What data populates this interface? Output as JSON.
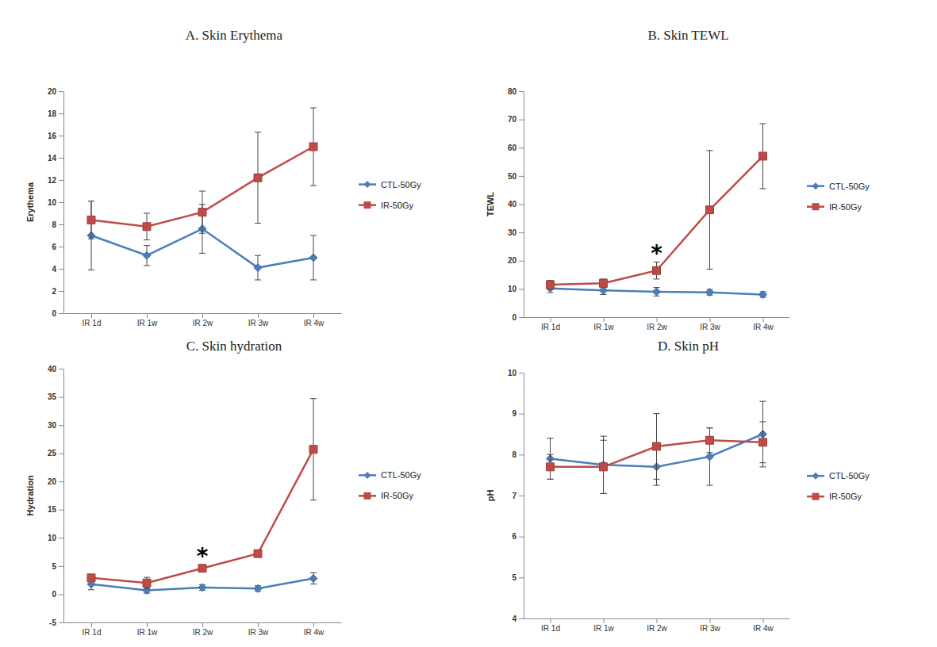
{
  "chart_data": [
    {
      "type": "line",
      "title": "A. Skin Erythema",
      "y_label": "Erythema",
      "categories": [
        "IR 1d",
        "IR 1w",
        "IR 2w",
        "IR 3w",
        "IR 4w"
      ],
      "ylim": [
        0,
        20
      ],
      "yticks": [
        0,
        2,
        4,
        6,
        8,
        10,
        12,
        14,
        16,
        18,
        20
      ],
      "grid": false,
      "legend": "right",
      "series": [
        {
          "name": "CTL-50Gy",
          "color": "#4a7ebb",
          "marker": "diamond",
          "values": [
            7.0,
            5.2,
            7.6,
            4.1,
            5.0
          ],
          "errors": [
            3.1,
            0.9,
            2.2,
            1.1,
            2.0
          ]
        },
        {
          "name": "IR-50Gy",
          "color": "#be4b48",
          "marker": "square",
          "values": [
            8.4,
            7.8,
            9.1,
            12.2,
            15.0
          ],
          "errors": [
            1.7,
            1.2,
            1.9,
            4.1,
            3.5
          ]
        }
      ],
      "annotations": []
    },
    {
      "type": "line",
      "title": "B. Skin TEWL",
      "y_label": "TEWL",
      "categories": [
        "IR 1d",
        "IR 1w",
        "IR 2w",
        "IR 3w",
        "IR 4w"
      ],
      "ylim": [
        0,
        80
      ],
      "yticks": [
        0,
        10,
        20,
        30,
        40,
        50,
        60,
        70,
        80
      ],
      "grid": false,
      "legend": "right",
      "series": [
        {
          "name": "CTL-50Gy",
          "color": "#4a7ebb",
          "marker": "diamond",
          "values": [
            10.2,
            9.5,
            9.0,
            8.8,
            8.0
          ],
          "errors": [
            1.5,
            1.5,
            1.5,
            1.0,
            1.0
          ]
        },
        {
          "name": "IR-50Gy",
          "color": "#be4b48",
          "marker": "square",
          "values": [
            11.5,
            12.0,
            16.5,
            38.0,
            57.0
          ],
          "errors": [
            1.5,
            1.5,
            3.0,
            21.0,
            11.5
          ]
        }
      ],
      "annotations": [
        {
          "text": "*",
          "category": "IR 2w"
        }
      ]
    },
    {
      "type": "line",
      "title": "C. Skin hydration",
      "y_label": "Hydration",
      "categories": [
        "IR 1d",
        "IR 1w",
        "IR 2w",
        "IR 3w",
        "IR 4w"
      ],
      "ylim": [
        -5,
        40
      ],
      "yticks": [
        -5,
        0,
        5,
        10,
        15,
        20,
        25,
        30,
        35,
        40
      ],
      "grid": false,
      "legend": "right",
      "series": [
        {
          "name": "CTL-50Gy",
          "color": "#4a7ebb",
          "marker": "diamond",
          "values": [
            1.8,
            0.7,
            1.2,
            1.0,
            2.8
          ],
          "errors": [
            1.0,
            0.5,
            0.5,
            0.5,
            1.0
          ]
        },
        {
          "name": "IR-50Gy",
          "color": "#be4b48",
          "marker": "square",
          "values": [
            2.9,
            2.0,
            4.6,
            7.2,
            25.7
          ],
          "errors": [
            0.5,
            1.0,
            0.5,
            0.5,
            9.0
          ]
        }
      ],
      "annotations": [
        {
          "text": "*",
          "category": "IR 2w"
        }
      ]
    },
    {
      "type": "line",
      "title": "D. Skin pH",
      "y_label": "pH",
      "categories": [
        "IR 1d",
        "IR 1w",
        "IR 2w",
        "IR 3w",
        "IR 4w"
      ],
      "ylim": [
        4,
        10
      ],
      "yticks": [
        4,
        5,
        6,
        7,
        8,
        9,
        10
      ],
      "grid": false,
      "legend": "right",
      "series": [
        {
          "name": "CTL-50Gy",
          "color": "#4a7ebb",
          "marker": "diamond",
          "values": [
            7.9,
            7.75,
            7.7,
            7.95,
            8.5
          ],
          "errors": [
            0.5,
            0.7,
            0.45,
            0.7,
            0.8
          ]
        },
        {
          "name": "IR-50Gy",
          "color": "#be4b48",
          "marker": "square",
          "values": [
            7.7,
            7.7,
            8.2,
            8.35,
            8.3
          ],
          "errors": [
            0.3,
            0.65,
            0.8,
            0.3,
            0.5
          ]
        }
      ],
      "annotations": []
    }
  ]
}
